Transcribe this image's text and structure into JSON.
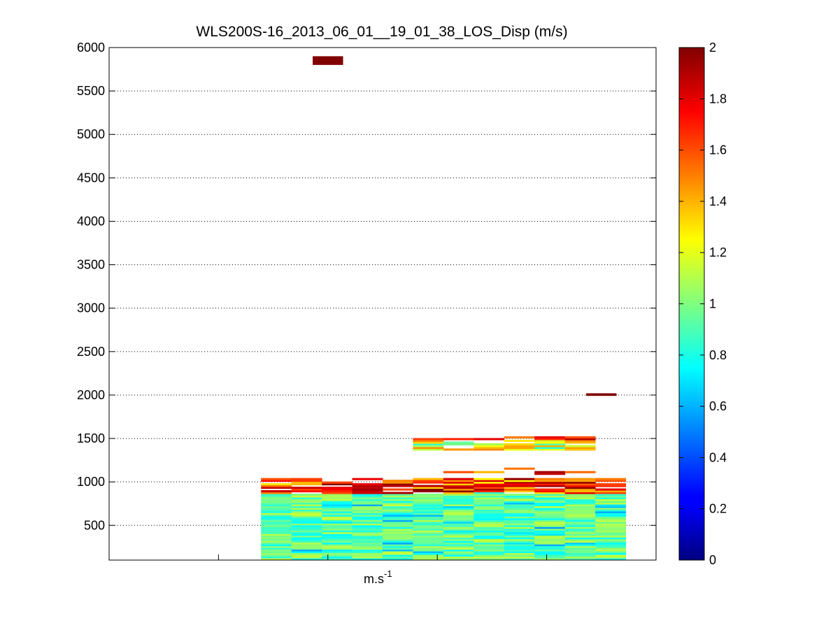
{
  "chart_data": {
    "type": "heatmap",
    "title": "WLS200S-16_2013_06_01__19_01_38_LOS_Disp (m/s)",
    "xlabel": "m.s",
    "xlabel_superscript": "-1",
    "ylabel": "",
    "ylim": [
      100,
      6000
    ],
    "yticks": [
      "500",
      "1000",
      "1500",
      "2000",
      "2500",
      "3000",
      "3500",
      "4000",
      "4500",
      "5000",
      "5500",
      "6000"
    ],
    "ytick_values": [
      500,
      1000,
      1500,
      2000,
      2500,
      3000,
      3500,
      4000,
      4500,
      5000,
      5500,
      6000
    ],
    "grid": "horizontal dotted",
    "colorbar": {
      "colormap": "jet",
      "clim": [
        0,
        2
      ],
      "ticks": [
        "0",
        "0.2",
        "0.4",
        "0.6",
        "0.8",
        "1",
        "1.2",
        "1.4",
        "1.6",
        "1.8",
        "2"
      ],
      "tick_values": [
        0,
        0.2,
        0.4,
        0.6,
        0.8,
        1,
        1.2,
        1.4,
        1.6,
        1.8,
        2
      ]
    },
    "columns": 18,
    "data_column_range": [
      5,
      17
    ],
    "isolated_cells": [
      {
        "col": 7,
        "alt": 5850,
        "value": 2.0
      },
      {
        "col": 16,
        "alt": 1970,
        "value": 2.0
      }
    ],
    "value_bands": [
      {
        "alt_range": [
          100,
          860
        ],
        "value_range": [
          0.6,
          1.2
        ],
        "note": "low-altitude layer, mostly 0.8-1.1"
      },
      {
        "alt_range": [
          860,
          1040
        ],
        "value_range": [
          1.2,
          2.0
        ],
        "note": "upper edge of low layer, 1.4-2"
      },
      {
        "alt_range": [
          1080,
          1200
        ],
        "value_range": [
          1.2,
          2.0
        ],
        "cols": [
          11,
          16
        ]
      },
      {
        "alt_range": [
          1360,
          1520
        ],
        "value_range": [
          0.4,
          2.0
        ],
        "cols": [
          10,
          16
        ]
      }
    ]
  }
}
